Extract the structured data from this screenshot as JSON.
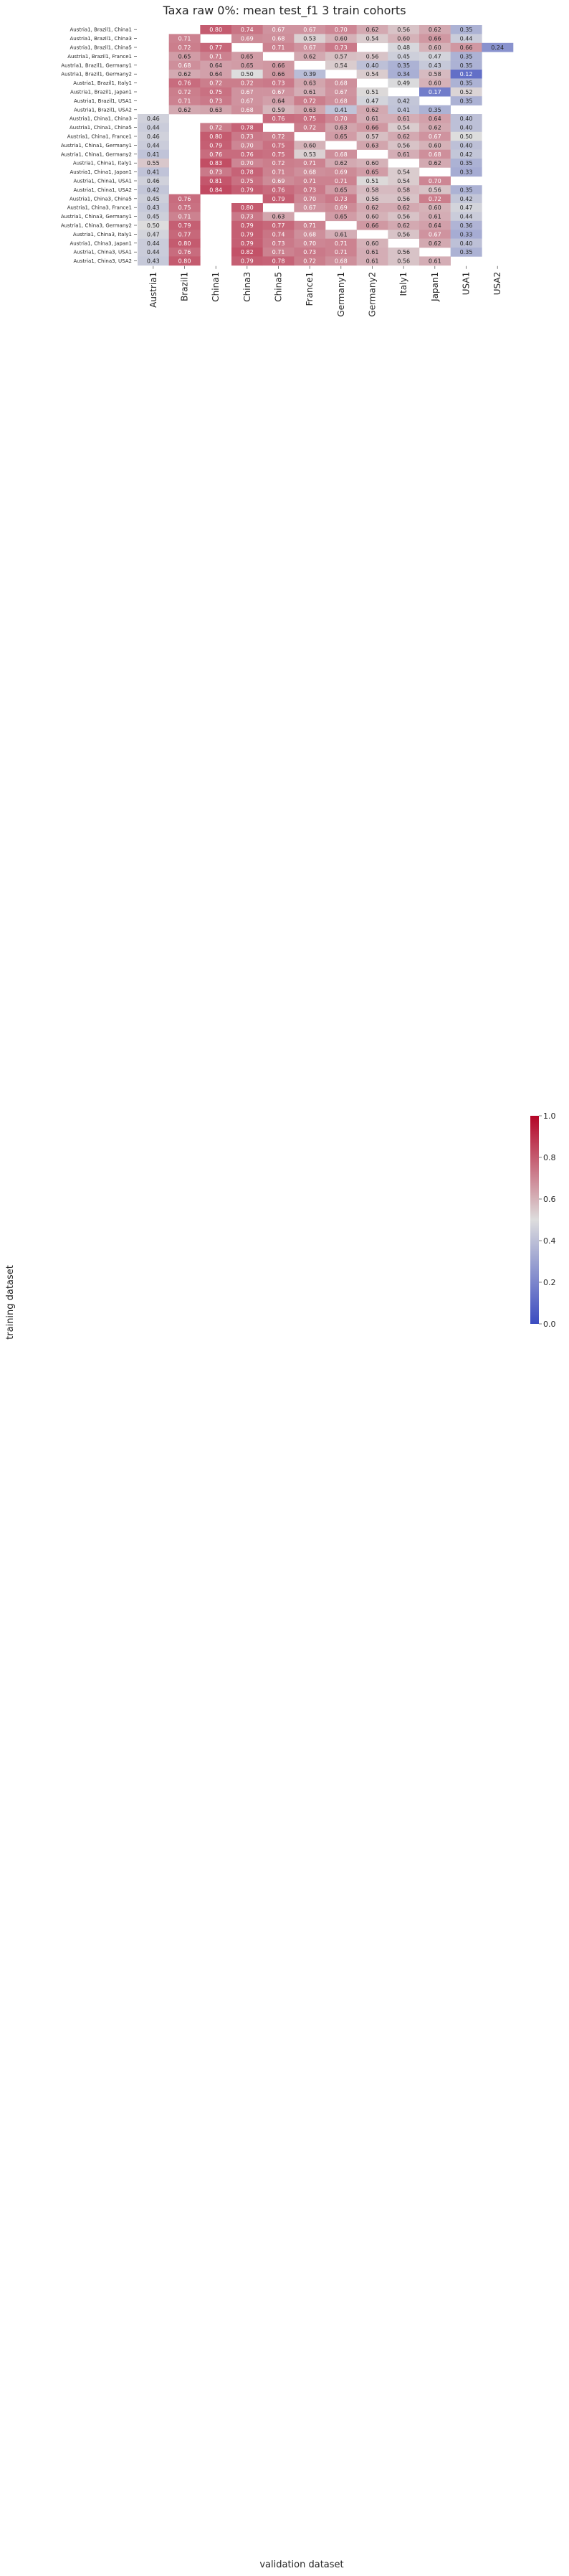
{
  "chart_data": {
    "type": "heatmap",
    "title": "Taxa raw 0%: mean test_f1 3 train cohorts",
    "xlabel": "validation dataset",
    "ylabel": "training dataset",
    "columns": [
      "Austria1",
      "Brazil1",
      "China1",
      "China3",
      "China5",
      "France1",
      "Germany1",
      "Germany2",
      "Italy1",
      "Japan1",
      "USA1",
      "USA2"
    ],
    "rows": [
      "Austria1, Brazil1, China1",
      "Austria1, Brazil1, China3",
      "Austria1, Brazil1, China5",
      "Austria1, Brazil1, France1",
      "Austria1, Brazil1, Germany1",
      "Austria1, Brazil1, Germany2",
      "Austria1, Brazil1, Italy1",
      "Austria1, Brazil1, Japan1",
      "Austria1, Brazil1, USA1",
      "Austria1, Brazil1, USA2",
      "Austria1, China1, China3",
      "Austria1, China1, China5",
      "Austria1, China1, France1",
      "Austria1, China1, Germany1",
      "Austria1, China1, Germany2",
      "Austria1, China1, Italy1",
      "Austria1, China1, Japan1",
      "Austria1, China1, USA1",
      "Austria1, China1, USA2",
      "Austria1, China3, China5",
      "Austria1, China3, France1",
      "Austria1, China3, Germany1",
      "Austria1, China3, Germany2",
      "Austria1, China3, Italy1",
      "Austria1, China3, Japan1",
      "Austria1, China3, USA1",
      "Austria1, China3, USA2"
    ],
    "values": [
      [
        null,
        null,
        0.8,
        0.74,
        0.67,
        0.67,
        0.7,
        0.62,
        0.56,
        0.62,
        0.35,
        null
      ],
      [
        null,
        0.71,
        null,
        0.69,
        0.68,
        0.53,
        0.6,
        0.54,
        0.6,
        0.66,
        0.44,
        null
      ],
      [
        null,
        0.72,
        0.77,
        null,
        0.71,
        0.67,
        0.73,
        null,
        0.48,
        0.6,
        0.66,
        0.24
      ],
      [
        null,
        0.65,
        0.71,
        0.65,
        null,
        0.62,
        0.57,
        0.56,
        0.45,
        0.47,
        0.35,
        null
      ],
      [
        null,
        0.68,
        0.64,
        0.65,
        0.66,
        null,
        0.54,
        0.4,
        0.35,
        0.43,
        0.35,
        null
      ],
      [
        null,
        0.62,
        0.64,
        0.5,
        0.66,
        0.39,
        null,
        0.54,
        0.34,
        0.58,
        0.12,
        null
      ],
      [
        null,
        0.76,
        0.72,
        0.72,
        0.73,
        0.63,
        0.68,
        null,
        0.49,
        0.6,
        0.35,
        null
      ],
      [
        null,
        0.72,
        0.75,
        0.67,
        0.67,
        0.61,
        0.67,
        0.51,
        null,
        0.17,
        0.52,
        null
      ],
      [
        null,
        0.71,
        0.73,
        0.67,
        0.64,
        0.72,
        0.68,
        0.47,
        0.42,
        null,
        0.35,
        null
      ],
      [
        null,
        0.62,
        0.63,
        0.68,
        0.59,
        0.63,
        0.41,
        0.62,
        0.41,
        0.35,
        null,
        null
      ],
      [
        0.46,
        null,
        null,
        null,
        0.76,
        0.75,
        0.7,
        0.61,
        0.61,
        0.64,
        0.4,
        null
      ],
      [
        0.44,
        null,
        0.72,
        0.78,
        null,
        0.72,
        0.63,
        0.66,
        0.54,
        0.62,
        0.4,
        null
      ],
      [
        0.46,
        null,
        0.8,
        0.73,
        0.72,
        null,
        0.65,
        0.57,
        0.62,
        0.67,
        0.5,
        null
      ],
      [
        0.44,
        null,
        0.79,
        0.7,
        0.75,
        0.6,
        null,
        0.63,
        0.56,
        0.6,
        0.4,
        null
      ],
      [
        0.41,
        null,
        0.76,
        0.76,
        0.75,
        0.53,
        0.68,
        null,
        0.61,
        0.68,
        0.42,
        null
      ],
      [
        0.55,
        null,
        0.83,
        0.7,
        0.72,
        0.71,
        0.62,
        0.6,
        null,
        0.62,
        0.35,
        null
      ],
      [
        0.41,
        null,
        0.73,
        0.78,
        0.71,
        0.68,
        0.69,
        0.65,
        0.54,
        null,
        0.33,
        null
      ],
      [
        0.46,
        null,
        0.81,
        0.75,
        0.69,
        0.71,
        0.71,
        0.51,
        0.54,
        0.7,
        null,
        null
      ],
      [
        0.42,
        null,
        0.84,
        0.79,
        0.76,
        0.73,
        0.65,
        0.58,
        0.58,
        0.56,
        0.35,
        null
      ],
      [
        0.45,
        0.76,
        null,
        null,
        0.79,
        0.7,
        0.73,
        0.56,
        0.56,
        0.72,
        0.42,
        null
      ],
      [
        0.43,
        0.75,
        null,
        0.8,
        null,
        0.67,
        0.69,
        0.62,
        0.62,
        0.6,
        0.47,
        null
      ],
      [
        0.45,
        0.71,
        null,
        0.73,
        0.63,
        null,
        0.65,
        0.6,
        0.56,
        0.61,
        0.44,
        null
      ],
      [
        0.5,
        0.79,
        null,
        0.79,
        0.77,
        0.71,
        null,
        0.66,
        0.62,
        0.64,
        0.36,
        null
      ],
      [
        0.47,
        0.77,
        null,
        0.79,
        0.74,
        0.68,
        0.61,
        null,
        0.56,
        0.67,
        0.33,
        null
      ],
      [
        0.44,
        0.8,
        null,
        0.79,
        0.73,
        0.7,
        0.71,
        0.6,
        null,
        0.62,
        0.4,
        null
      ],
      [
        0.44,
        0.76,
        null,
        0.82,
        0.71,
        0.73,
        0.71,
        0.61,
        0.56,
        null,
        0.35,
        null
      ],
      [
        0.43,
        0.8,
        null,
        0.79,
        0.78,
        0.72,
        0.68,
        0.61,
        0.56,
        0.61,
        null,
        null
      ]
    ],
    "vmin": 0.0,
    "vmax": 1.0,
    "colormap": "coolwarm",
    "colorbar_ticks": [
      "0.0",
      "0.2",
      "0.4",
      "0.6",
      "0.8",
      "1.0"
    ]
  },
  "colors": {
    "low": "#3b4cc0",
    "mid": "#dddddd",
    "high": "#b40426",
    "missing": "#ffffff",
    "text_dark": "#262626",
    "text_light": "#ffffff"
  }
}
